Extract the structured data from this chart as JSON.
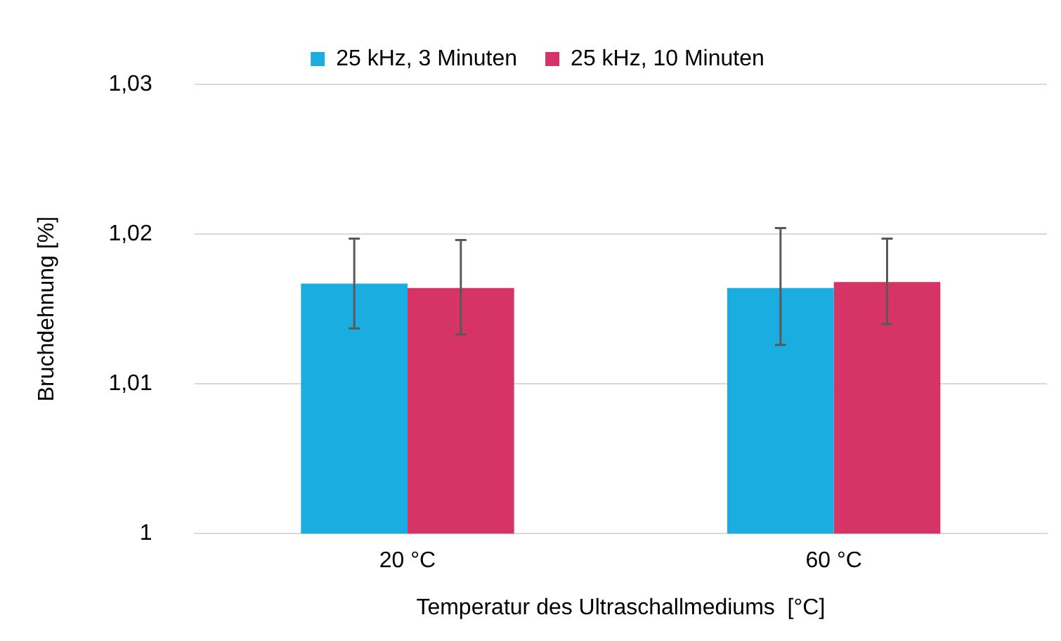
{
  "chart_data": {
    "type": "bar",
    "xlabel": "Temperatur des Ultraschallmediums  [°C]",
    "ylabel": "Bruchdehnung [%]",
    "categories": [
      "20 °C",
      "60 °C"
    ],
    "series": [
      {
        "name": "25 kHz, 3 Minuten",
        "color": "#1aaee0",
        "values": [
          1.0167,
          1.0164
        ],
        "errors": [
          [
            1.0137,
            1.0197
          ],
          [
            1.0126,
            1.0204
          ]
        ]
      },
      {
        "name": "25 kHz, 10 Minuten",
        "color": "#d63466",
        "values": [
          1.0164,
          1.0168
        ],
        "errors": [
          [
            1.0133,
            1.0196
          ],
          [
            1.014,
            1.0197
          ]
        ]
      }
    ],
    "ylim": [
      1,
      1.03
    ],
    "yticks": [
      {
        "value": 1,
        "label": "1"
      },
      {
        "value": 1.01,
        "label": "1,01"
      },
      {
        "value": 1.02,
        "label": "1,02"
      },
      {
        "value": 1.03,
        "label": "1,03"
      }
    ],
    "grid": "y",
    "legend": "top"
  }
}
